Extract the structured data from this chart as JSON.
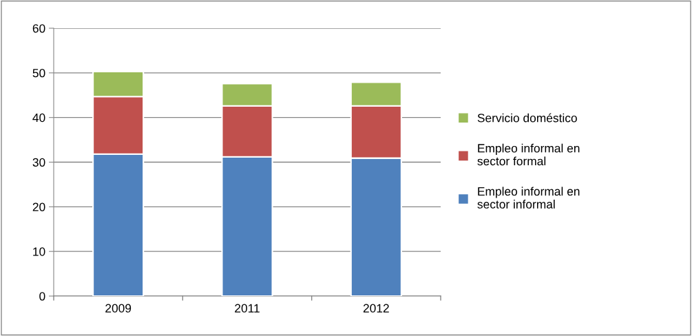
{
  "chart_data": {
    "type": "bar",
    "stacked": true,
    "categories": [
      "2009",
      "2011",
      "2012"
    ],
    "series": [
      {
        "name": "Empleo informal en sector informal",
        "color": "#4f81bd",
        "values": [
          31.8,
          31.2,
          30.9
        ]
      },
      {
        "name": "Empleo informal en sector formal",
        "color": "#c0504d",
        "values": [
          12.9,
          11.4,
          11.7
        ]
      },
      {
        "name": "Servicio doméstico",
        "color": "#9bbb59",
        "values": [
          5.6,
          5.0,
          5.3
        ]
      }
    ],
    "ylim": [
      0,
      60
    ],
    "yticks": [
      0,
      10,
      20,
      30,
      40,
      50,
      60
    ],
    "grid": "y",
    "legend": "right"
  }
}
